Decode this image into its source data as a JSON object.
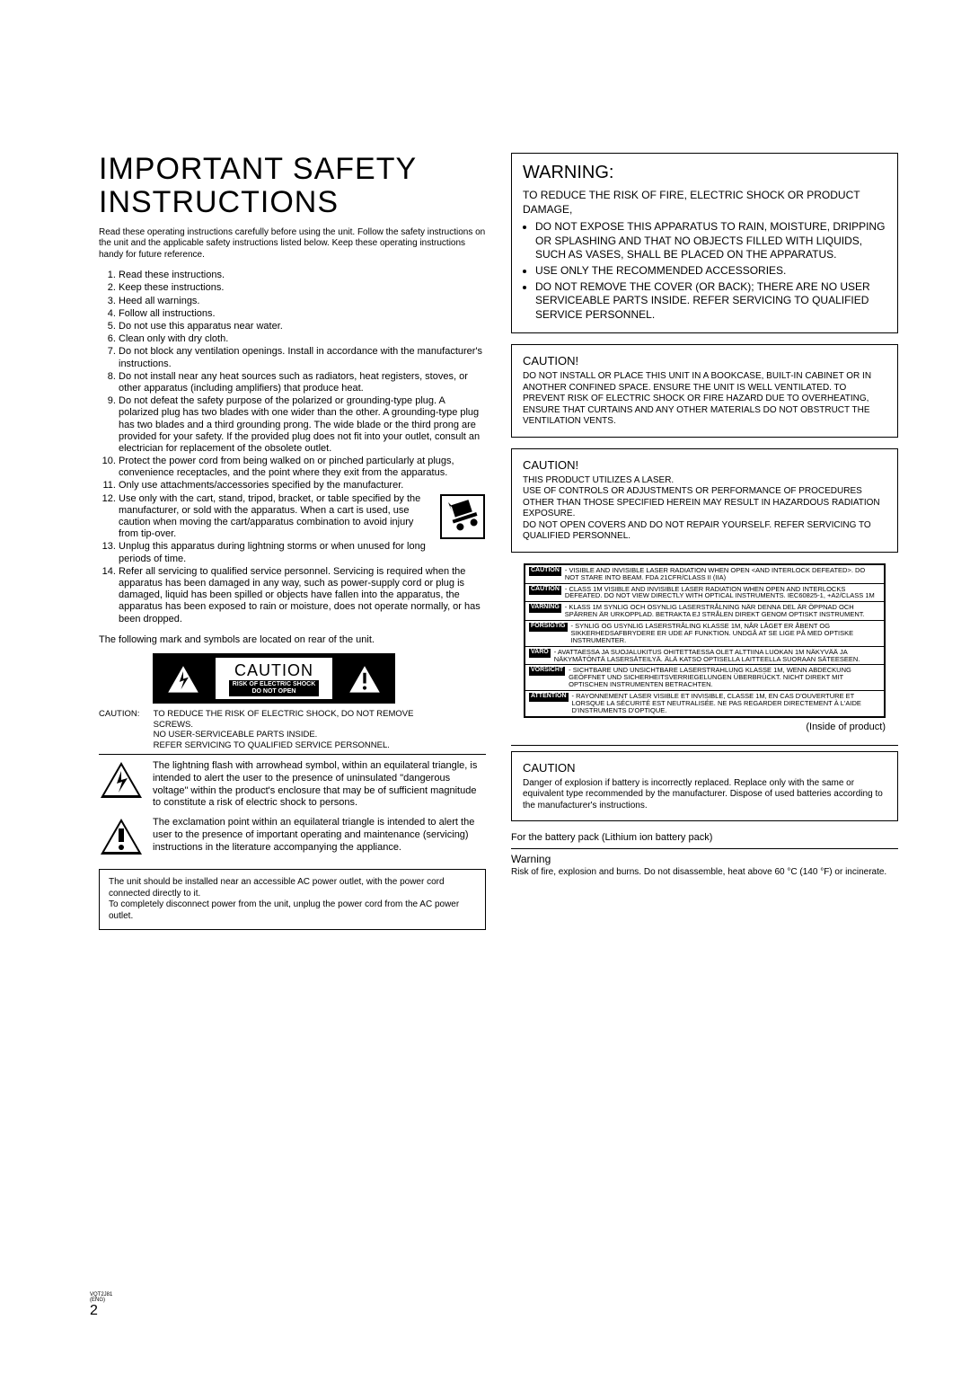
{
  "left": {
    "title": "IMPORTANT SAFETY INSTRUCTIONS",
    "intro": "Read these operating instructions carefully before using the unit. Follow the safety instructions on the unit and the applicable safety instructions listed below. Keep these operating instructions handy for future reference.",
    "items": [
      "Read these instructions.",
      "Keep these instructions.",
      "Heed all warnings.",
      "Follow all instructions.",
      "Do not use this apparatus near water.",
      "Clean only with dry cloth.",
      "Do not block any ventilation openings. Install in accordance with the manufacturer's instructions.",
      "Do not install near any heat sources such as radiators, heat registers, stoves, or other apparatus (including amplifiers) that produce heat.",
      "Do not defeat the safety purpose of the polarized or grounding-type plug. A polarized plug has two blades with one wider than the other. A grounding-type plug has two blades and a third grounding prong. The wide blade or the third prong are provided for your safety. If the provided plug does not fit into your outlet, consult an electrician for replacement of the obsolete outlet.",
      "Protect the power cord from being walked on or pinched particularly at plugs, convenience receptacles, and the point where they exit from the apparatus.",
      "Only use attachments/accessories specified by the manufacturer.",
      "Use only with the cart, stand, tripod, bracket, or table specified by the manufacturer, or sold with the apparatus. When a cart is used, use caution when moving the cart/apparatus combination to avoid injury from tip-over.",
      "Unplug this apparatus during lightning storms or when unused for long periods of time.",
      "Refer all servicing to qualified service personnel. Servicing is required when the apparatus has been damaged in any way, such as power-supply cord or plug is damaged, liquid has been spilled or objects have fallen into the apparatus, the apparatus has been exposed to rain or moisture, does not operate normally, or has been dropped."
    ],
    "symbols_intro": "The following mark and symbols are located on rear of the unit.",
    "plate": {
      "caution": "CAUTION",
      "risk1": "RISK OF ELECTRIC SHOCK",
      "risk2": "DO NOT OPEN"
    },
    "caution_table": {
      "label": "CAUTION:",
      "text": "TO REDUCE THE RISK OF ELECTRIC SHOCK, DO NOT REMOVE SCREWS.\nNO USER-SERVICEABLE PARTS INSIDE.\nREFER SERVICING TO QUALIFIED SERVICE PERSONNEL."
    },
    "lightning_desc": "The lightning flash with arrowhead symbol, within an equilateral triangle, is intended to alert the user to the presence of uninsulated \"dangerous voltage\" within the product's enclosure that may be of sufficient magnitude to constitute a risk of electric shock to persons.",
    "exclaim_desc": "The exclamation point within an equilateral triangle is intended to alert the user to the presence of important operating and maintenance (servicing) instructions in the literature accompanying the appliance.",
    "power_box": "The unit should be installed near an accessible AC power outlet, with the power cord connected directly to it.\nTo completely disconnect power from the unit, unplug the power cord from the AC power outlet."
  },
  "right": {
    "warning": {
      "heading": "WARNING:",
      "lead": "TO REDUCE THE RISK OF FIRE, ELECTRIC SHOCK OR PRODUCT DAMAGE,",
      "bullets": [
        "DO NOT EXPOSE THIS APPARATUS TO RAIN, MOISTURE, DRIPPING OR SPLASHING AND THAT NO OBJECTS FILLED WITH LIQUIDS, SUCH AS VASES, SHALL BE PLACED ON THE APPARATUS.",
        "USE ONLY THE RECOMMENDED ACCESSORIES.",
        "DO NOT REMOVE THE COVER (OR BACK); THERE ARE NO USER SERVICEABLE PARTS INSIDE. REFER SERVICING TO QUALIFIED SERVICE PERSONNEL."
      ]
    },
    "caution1": {
      "heading": "CAUTION!",
      "body": "DO NOT INSTALL OR PLACE THIS UNIT IN A BOOKCASE, BUILT-IN CABINET OR IN ANOTHER CONFINED SPACE. ENSURE THE UNIT IS WELL VENTILATED. TO PREVENT RISK OF ELECTRIC SHOCK OR FIRE HAZARD DUE TO OVERHEATING, ENSURE THAT CURTAINS AND ANY OTHER MATERIALS DO NOT OBSTRUCT THE VENTILATION VENTS."
    },
    "caution2": {
      "heading": "CAUTION!",
      "body": "THIS PRODUCT UTILIZES A LASER.\nUSE OF CONTROLS OR ADJUSTMENTS OR PERFORMANCE OF PROCEDURES OTHER THAN THOSE SPECIFIED HEREIN MAY RESULT IN HAZARDOUS RADIATION EXPOSURE.\nDO NOT OPEN COVERS AND DO NOT REPAIR YOURSELF. REFER SERVICING TO QUALIFIED PERSONNEL."
    },
    "laser_rows": [
      {
        "tag": "CAUTION",
        "msg": "VISIBLE AND INVISIBLE LASER RADIATION WHEN OPEN <AND INTERLOCK DEFEATED>. DO NOT STARE INTO BEAM.    FDA 21CFR/CLASS II (IIa)"
      },
      {
        "tag": "CAUTION",
        "msg": "CLASS 1M VISIBLE AND INVISIBLE LASER RADIATION WHEN OPEN AND INTERLOCKS DEFEATED. DO NOT VIEW DIRECTLY WITH OPTICAL INSTRUMENTS.   IEC60825-1, +A2/CLASS 1M"
      },
      {
        "tag": "VARNING",
        "msg": "KLASS 1M SYNLIG OCH OSYNLIG LASERSTRÅLNING NÄR DENNA DEL ÄR ÖPPNAD OCH SPÄRREN ÄR URKOPPLAD. BETRAKTA EJ STRÅLEN DIREKT GENOM OPTISKT INSTRUMENT."
      },
      {
        "tag": "FORSIGTIG",
        "msg": "SYNLIG OG USYNLIG LASERSTRÅLING KLASSE 1M, NÅR LÅGET ER ÅBENT OG SIKKERHEDSAFBRYDERE ER UDE AF FUNKTION. UNDGÅ AT SE LIGE PÅ MED OPTISKE INSTRUMENTER."
      },
      {
        "tag": "VARO",
        "msg": "AVATTAESSA JA SUOJALUKITUS OHITETTAESSA OLET ALTTIINA LUOKAN 1M NÄKYVÄÄ JA NÄKYMÄTÖNTÄ LASERSÄTEILYÄ. ÄLÄ KATSO OPTISELLA LAITTEELLA SUORAAN SÄTEESEEN."
      },
      {
        "tag": "VORSICHT",
        "msg": "SICHTBARE UND UNSICHTBARE LASERSTRAHLUNG KLASSE 1M, WENN ABDECKUNG GEÖFFNET UND SICHERHEITSVERRIEGELUNGEN ÜBERBRÜCKT. NICHT DIREKT MIT OPTISCHEN INSTRUMENTEN BETRACHTEN."
      },
      {
        "tag": "ATTENTION",
        "msg": "RAYONNEMENT LASER VISIBLE ET INVISIBLE, CLASSE 1M, EN CAS D'OUVERTURE ET LORSQUE LA SÉCURITÉ EST NEUTRALISÉE. NE PAS REGARDER DIRECTEMENT À L'AIDE D'INSTRUMENTS D'OPTIQUE."
      }
    ],
    "inside": "(Inside of product)",
    "caution3": {
      "heading": "CAUTION",
      "body": "Danger of explosion if battery is incorrectly replaced. Replace only with the same or equivalent type recommended by the manufacturer. Dispose of used batteries according to the manufacturer's instructions."
    },
    "battery_note": "For the battery pack (Lithium ion battery pack)",
    "warn_sub": {
      "heading": "Warning",
      "body": "Risk of fire, explosion and burns. Do not disassemble, heat above 60 °C (140 °F) or incinerate."
    }
  },
  "page_number": "2",
  "page_code": "VQT2J81\n(ENG)"
}
